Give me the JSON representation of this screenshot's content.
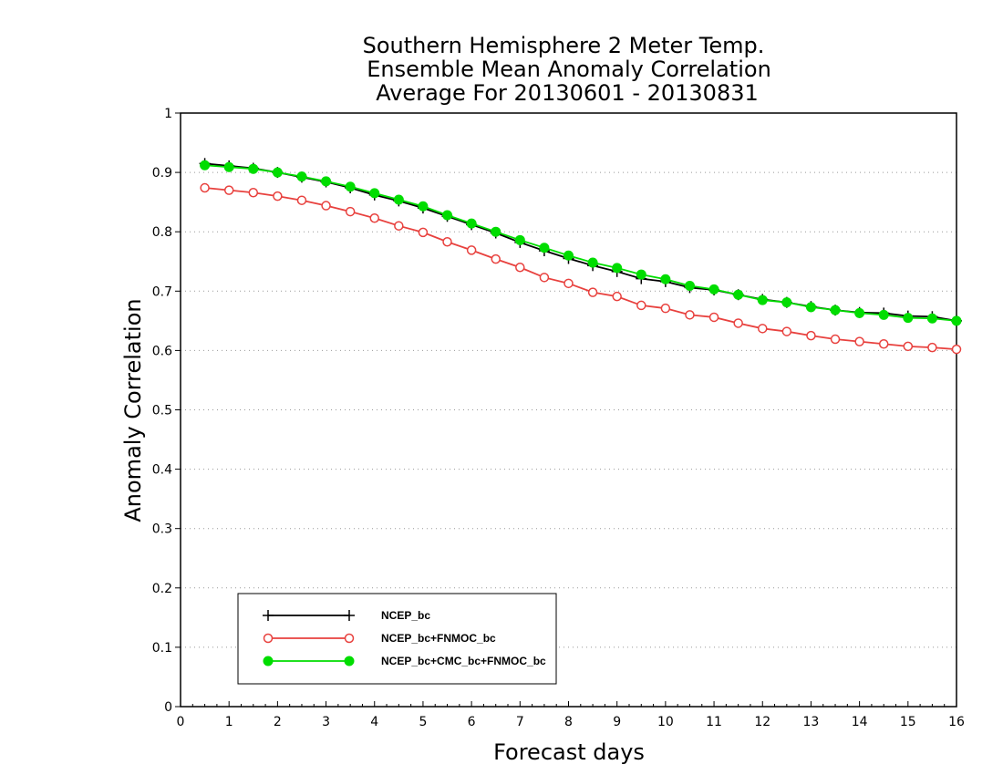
{
  "chart_data": {
    "type": "line",
    "title_lines": [
      "Southern Hemisphere 2 Meter Temp.",
      "Ensemble Mean Anomaly Correlation",
      "Average For 20130601 - 20130831"
    ],
    "xlabel": "Forecast days",
    "ylabel": "Anomaly Correlation",
    "xlim": [
      0,
      16
    ],
    "ylim": [
      0,
      1
    ],
    "x_ticks": [
      0,
      1,
      2,
      3,
      4,
      5,
      6,
      7,
      8,
      9,
      10,
      11,
      12,
      13,
      14,
      15,
      16
    ],
    "y_ticks": [
      "0",
      "0.1",
      "0.2",
      "0.3",
      "0.4",
      "0.5",
      "0.6",
      "0.7",
      "0.8",
      "0.9",
      "1"
    ],
    "grid": "horizontal dotted",
    "legend_position": "bottom-left",
    "x": [
      0.5,
      1,
      1.5,
      2,
      2.5,
      3,
      3.5,
      4,
      4.5,
      5,
      5.5,
      6,
      6.5,
      7,
      7.5,
      8,
      8.5,
      9,
      9.5,
      10,
      10.5,
      11,
      11.5,
      12,
      12.5,
      13,
      13.5,
      14,
      14.5,
      15,
      15.5,
      16
    ],
    "series": [
      {
        "name": "NCEP_bc",
        "color": "#000000",
        "marker": "plus",
        "values": [
          0.915,
          0.911,
          0.907,
          0.9,
          0.892,
          0.884,
          0.874,
          0.862,
          0.852,
          0.84,
          0.826,
          0.812,
          0.798,
          0.782,
          0.768,
          0.755,
          0.743,
          0.733,
          0.721,
          0.716,
          0.706,
          0.702,
          0.694,
          0.686,
          0.681,
          0.674,
          0.668,
          0.664,
          0.663,
          0.658,
          0.657,
          0.65
        ]
      },
      {
        "name": "NCEP_bc+FNMOC_bc",
        "color": "#e8413e",
        "marker": "open-circle",
        "values": [
          0.874,
          0.87,
          0.866,
          0.86,
          0.853,
          0.844,
          0.834,
          0.823,
          0.81,
          0.799,
          0.783,
          0.769,
          0.754,
          0.74,
          0.723,
          0.713,
          0.698,
          0.691,
          0.676,
          0.671,
          0.66,
          0.656,
          0.646,
          0.637,
          0.632,
          0.625,
          0.619,
          0.615,
          0.611,
          0.607,
          0.605,
          0.602
        ]
      },
      {
        "name": "NCEP_bc+CMC_bc+FNMOC_bc",
        "color": "#00dd00",
        "marker": "filled-circle",
        "values": [
          0.912,
          0.909,
          0.906,
          0.9,
          0.893,
          0.885,
          0.876,
          0.865,
          0.854,
          0.843,
          0.828,
          0.814,
          0.8,
          0.786,
          0.773,
          0.76,
          0.748,
          0.739,
          0.728,
          0.72,
          0.709,
          0.703,
          0.694,
          0.685,
          0.681,
          0.673,
          0.668,
          0.663,
          0.66,
          0.655,
          0.654,
          0.65
        ]
      }
    ]
  }
}
